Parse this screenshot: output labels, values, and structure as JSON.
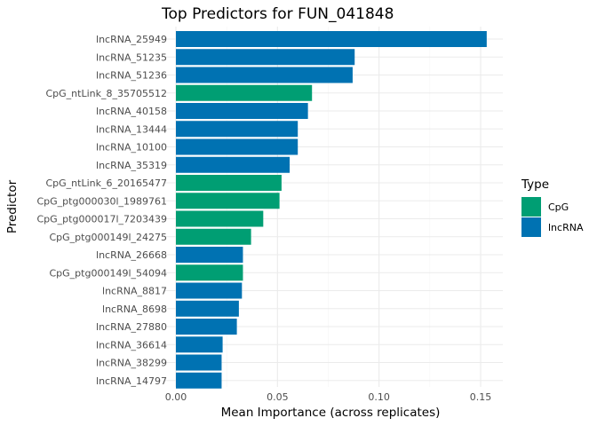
{
  "chart_data": {
    "type": "bar",
    "orientation": "horizontal",
    "title": "Top Predictors for FUN_041848",
    "xlabel": "Mean Importance (across replicates)",
    "ylabel": "Predictor",
    "xlim": [
      0,
      0.16
    ],
    "x_ticks": [
      "0.00",
      "0.05",
      "0.10",
      "0.15"
    ],
    "x_tick_values": [
      0,
      0.05,
      0.1,
      0.15
    ],
    "grid": true,
    "legend": {
      "title": "Type",
      "placement": "right",
      "entries": [
        {
          "name": "CpG",
          "color": "#009E73"
        },
        {
          "name": "lncRNA",
          "color": "#0072B2"
        }
      ]
    },
    "bars": [
      {
        "label": "lncRNA_25949",
        "value": 0.153,
        "type": "lncRNA"
      },
      {
        "label": "lncRNA_51235",
        "value": 0.088,
        "type": "lncRNA"
      },
      {
        "label": "lncRNA_51236",
        "value": 0.087,
        "type": "lncRNA"
      },
      {
        "label": "CpG_ntLink_8_35705512",
        "value": 0.067,
        "type": "CpG"
      },
      {
        "label": "lncRNA_40158",
        "value": 0.065,
        "type": "lncRNA"
      },
      {
        "label": "lncRNA_13444",
        "value": 0.06,
        "type": "lncRNA"
      },
      {
        "label": "lncRNA_10100",
        "value": 0.06,
        "type": "lncRNA"
      },
      {
        "label": "lncRNA_35319",
        "value": 0.056,
        "type": "lncRNA"
      },
      {
        "label": "CpG_ntLink_6_20165477",
        "value": 0.052,
        "type": "CpG"
      },
      {
        "label": "CpG_ptg000030l_1989761",
        "value": 0.051,
        "type": "CpG"
      },
      {
        "label": "CpG_ptg000017l_7203439",
        "value": 0.043,
        "type": "CpG"
      },
      {
        "label": "CpG_ptg000149l_24275",
        "value": 0.037,
        "type": "CpG"
      },
      {
        "label": "lncRNA_26668",
        "value": 0.033,
        "type": "lncRNA"
      },
      {
        "label": "CpG_ptg000149l_54094",
        "value": 0.033,
        "type": "CpG"
      },
      {
        "label": "lncRNA_8817",
        "value": 0.0325,
        "type": "lncRNA"
      },
      {
        "label": "lncRNA_8698",
        "value": 0.031,
        "type": "lncRNA"
      },
      {
        "label": "lncRNA_27880",
        "value": 0.03,
        "type": "lncRNA"
      },
      {
        "label": "lncRNA_36614",
        "value": 0.023,
        "type": "lncRNA"
      },
      {
        "label": "lncRNA_38299",
        "value": 0.0225,
        "type": "lncRNA"
      },
      {
        "label": "lncRNA_14797",
        "value": 0.0225,
        "type": "lncRNA"
      }
    ]
  }
}
